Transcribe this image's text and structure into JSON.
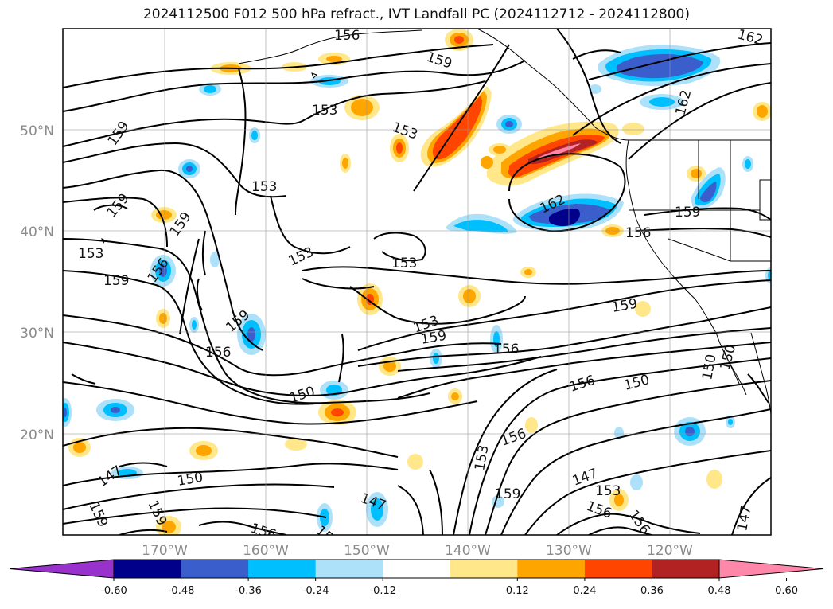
{
  "title": "2024112500 F012 500 hPa refract., IVT Landfall PC (2024112712 - 2024112800)",
  "axes": {
    "lat_labels": [
      "50°N",
      "40°N",
      "30°N",
      "20°N"
    ],
    "lon_labels": [
      "170°W",
      "160°W",
      "150°W",
      "140°W",
      "130°W",
      "120°W"
    ]
  },
  "colorbar": {
    "ticks": [
      "-0.60",
      "-0.48",
      "-0.36",
      "-0.24",
      "-0.12",
      "0.12",
      "0.24",
      "0.36",
      "0.48",
      "0.60"
    ],
    "colors": [
      "#9932CC",
      "#00008B",
      "#3A5FCD",
      "#00BFFF",
      "#ADE1FA",
      "#FFFFFF",
      "#FFE78A",
      "#FFA500",
      "#FF4500",
      "#B22222",
      "#FF88AA"
    ]
  },
  "contour_labels": [
    "156",
    "159",
    "153",
    "153",
    "159",
    "153",
    "159",
    "159",
    "153",
    "159",
    "156",
    "162",
    "159",
    "153",
    "153",
    "156",
    "153",
    "159",
    "159",
    "156",
    "159",
    "156",
    "150",
    "156",
    "150",
    "150",
    "150",
    "147",
    "150",
    "159",
    "159",
    "156",
    "147",
    "153",
    "153",
    "156",
    "159",
    "147",
    "153",
    "156",
    "156",
    "147",
    "162",
    "162"
  ]
}
